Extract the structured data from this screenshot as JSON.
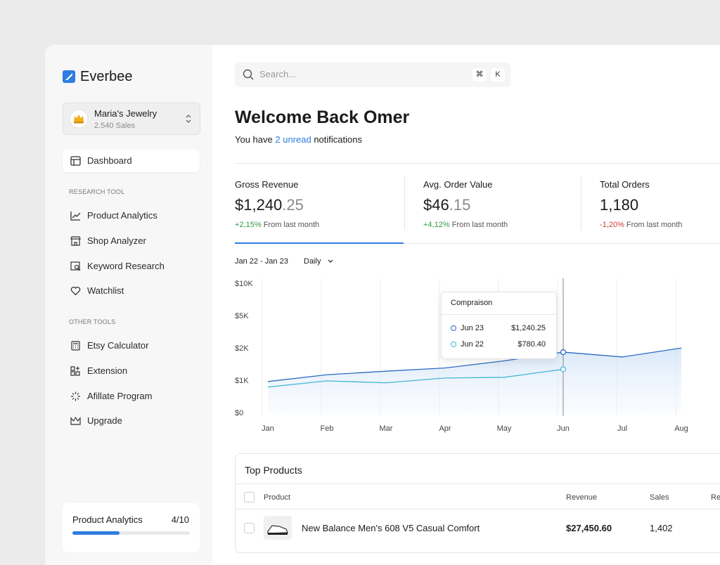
{
  "sidebar": {
    "brand": "Everbee",
    "shop": {
      "name": "Maria's Jewelry",
      "sales": "2.540 Sales"
    },
    "main_item": "Dashboard",
    "sections": [
      {
        "title": "RESEARCH TOOL",
        "items": [
          "Product Analytics",
          "Shop Analyzer",
          "Keyword Research",
          "Watchlist"
        ]
      },
      {
        "title": "OTHER TOOLS",
        "items": [
          "Etsy Calculator",
          "Extension",
          "Afillate Program",
          "Upgrade"
        ]
      }
    ],
    "progress": {
      "label": "Product Analytics",
      "count": "4/10"
    }
  },
  "search": {
    "placeholder": "Search...",
    "keys": [
      "⌘",
      "K"
    ]
  },
  "header": {
    "title": "Welcome Back Omer",
    "notice": {
      "before": "You have",
      "link": "2 unread",
      "after": "notifications"
    }
  },
  "stats": [
    {
      "label": "Gross Revenue",
      "value": "$1,240",
      "decimal": ".25",
      "change": "+2,15%",
      "note": "From last month"
    },
    {
      "label": "Avg. Order Value",
      "value": "$46",
      "decimal": ".15",
      "change": "+4,12%",
      "note": "From last month"
    },
    {
      "label": "Total Orders",
      "value": "1,180",
      "change": "-1,20%",
      "note": "From last month"
    }
  ],
  "chart_data": {
    "type": "line",
    "range_label": "Jan 22 - Jan 23",
    "interval": "Daily",
    "categories": [
      "Jan",
      "Feb",
      "Mar",
      "Apr",
      "May",
      "Jun",
      "Jul",
      "Aug"
    ],
    "series": [
      {
        "name": "Jun 23",
        "color": "#2c6cc0",
        "values": [
          980,
          1190,
          1300,
          1400,
          1620,
          1890,
          1740,
          2050
        ]
      },
      {
        "name": "Jun 22",
        "color": "#45b6d6",
        "values": [
          810,
          1000,
          940,
          1090,
          1110,
          1360,
          null,
          null
        ]
      }
    ],
    "ylim": [
      0,
      10000
    ],
    "yticks": [
      {
        "value": 10000,
        "label": "$10K"
      },
      {
        "value": 5000,
        "label": "$5K"
      },
      {
        "value": 2000,
        "label": "$2K"
      },
      {
        "value": 1000,
        "label": "$1K"
      },
      {
        "value": 0,
        "label": "$0"
      }
    ],
    "grid": "x",
    "area": true,
    "tooltip": {
      "title": "Compraison",
      "values": [
        "$1,240.25",
        "$780.40"
      ]
    }
  },
  "table": {
    "title": "Top Products",
    "columns": [
      "Product",
      "Revenue",
      "Sales",
      "Re"
    ],
    "rows": [
      [
        "New Balance Men's 608 V5 Casual Comfort",
        "$27,450.60",
        "1,402"
      ]
    ]
  }
}
